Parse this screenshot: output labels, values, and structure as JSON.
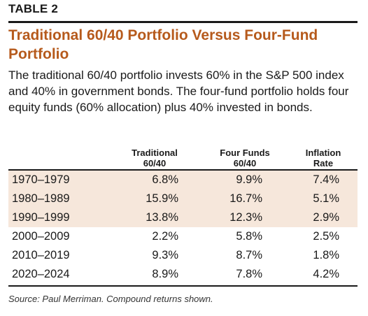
{
  "label": "TABLE 2",
  "title_line1": "Traditional 60/40 Portfolio Versus Four-Fund",
  "title_line2": "Portfolio",
  "intro": "The traditional 60/40 portfolio invests 60% in the S&P 500 index and 40% in government bonds. The four-fund portfolio holds four equity funds (60% allocation) plus 40% invested in bonds.",
  "columns": [
    {
      "line1": "Traditional",
      "line2": "60/40"
    },
    {
      "line1": "Four Funds",
      "line2": "60/40"
    },
    {
      "line1": "Inflation",
      "line2": "Rate"
    }
  ],
  "rows": [
    {
      "period": "1970–1979",
      "traditional": "6.8%",
      "four_funds": "9.9%",
      "inflation": "7.4%",
      "shaded": true
    },
    {
      "period": "1980–1989",
      "traditional": "15.9%",
      "four_funds": "16.7%",
      "inflation": "5.1%",
      "shaded": true
    },
    {
      "period": "1990–1999",
      "traditional": "13.8%",
      "four_funds": "12.3%",
      "inflation": "2.9%",
      "shaded": true
    },
    {
      "period": "2000–2009",
      "traditional": "2.2%",
      "four_funds": "5.8%",
      "inflation": "2.5%",
      "shaded": false
    },
    {
      "period": "2010–2019",
      "traditional": "9.3%",
      "four_funds": "8.7%",
      "inflation": "1.8%",
      "shaded": false
    },
    {
      "period": "2020–2024",
      "traditional": "8.9%",
      "four_funds": "7.8%",
      "inflation": "4.2%",
      "shaded": false
    }
  ],
  "source": "Source: Paul Merriman. Compound returns shown.",
  "colors": {
    "title": "#b65a1c",
    "shade": "#f6e7db",
    "rule": "#1a1a1a"
  }
}
